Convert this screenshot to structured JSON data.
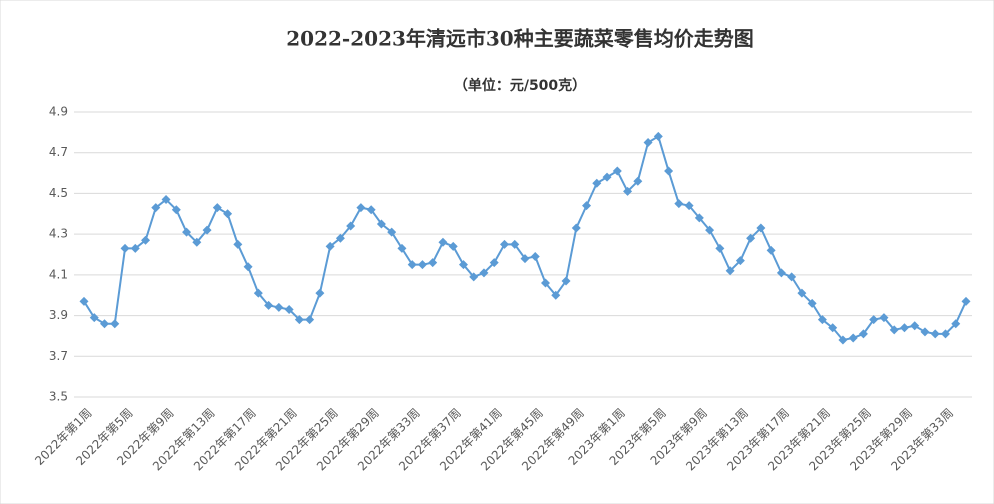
{
  "chart_data": {
    "type": "line",
    "title": "2022-2023年清远市30种主要蔬菜零售均价走势图",
    "subtitle": "（单位：元/500克）",
    "categories": [
      "2022年第1周",
      null,
      null,
      null,
      "2022年第5周",
      null,
      null,
      null,
      "2022年第9周",
      null,
      null,
      null,
      "2022年第13周",
      null,
      null,
      null,
      "2022年第17周",
      null,
      null,
      null,
      "2022年第21周",
      null,
      null,
      null,
      "2022年第25周",
      null,
      null,
      null,
      "2022年第29周",
      null,
      null,
      null,
      "2022年第33周",
      null,
      null,
      null,
      "2022年第37周",
      null,
      null,
      null,
      "2022年第41周",
      null,
      null,
      null,
      "2022年第45周",
      null,
      null,
      null,
      "2022年第49周",
      null,
      null,
      null,
      "2023年第1周",
      null,
      null,
      null,
      "2023年第5周",
      null,
      null,
      null,
      "2023年第9周",
      null,
      null,
      null,
      "2023年第13周",
      null,
      null,
      null,
      "2023年第17周",
      null,
      null,
      null,
      "2023年第21周",
      null,
      null,
      null,
      "2023年第25周",
      null,
      null,
      null,
      "2023年第29周",
      null,
      null,
      null,
      "2023年第33周",
      null,
      null
    ],
    "series": [
      {
        "name": "均价",
        "color": "#5b9bd5",
        "values": [
          3.97,
          3.89,
          3.86,
          3.86,
          4.23,
          4.23,
          4.27,
          4.43,
          4.47,
          4.42,
          4.31,
          4.26,
          4.32,
          4.43,
          4.4,
          4.25,
          4.14,
          4.01,
          3.95,
          3.94,
          3.93,
          3.88,
          3.88,
          4.01,
          4.24,
          4.28,
          4.34,
          4.43,
          4.42,
          4.35,
          4.31,
          4.23,
          4.15,
          4.15,
          4.16,
          4.26,
          4.24,
          4.15,
          4.09,
          4.11,
          4.16,
          4.25,
          4.25,
          4.18,
          4.19,
          4.06,
          4.0,
          4.07,
          4.33,
          4.44,
          4.55,
          4.58,
          4.61,
          4.51,
          4.56,
          4.75,
          4.78,
          4.61,
          4.45,
          4.44,
          4.38,
          4.32,
          4.23,
          4.12,
          4.17,
          4.28,
          4.33,
          4.22,
          4.11,
          4.09,
          4.01,
          3.96,
          3.88,
          3.84,
          3.78,
          3.79,
          3.81,
          3.88,
          3.89,
          3.83,
          3.84,
          3.85,
          3.82,
          3.81,
          3.81,
          3.86,
          3.97
        ]
      }
    ],
    "ylim": [
      3.5,
      4.9
    ],
    "yticks": [
      3.5,
      3.7,
      3.9,
      4.1,
      4.3,
      4.5,
      4.7,
      4.9
    ],
    "grid": true
  }
}
